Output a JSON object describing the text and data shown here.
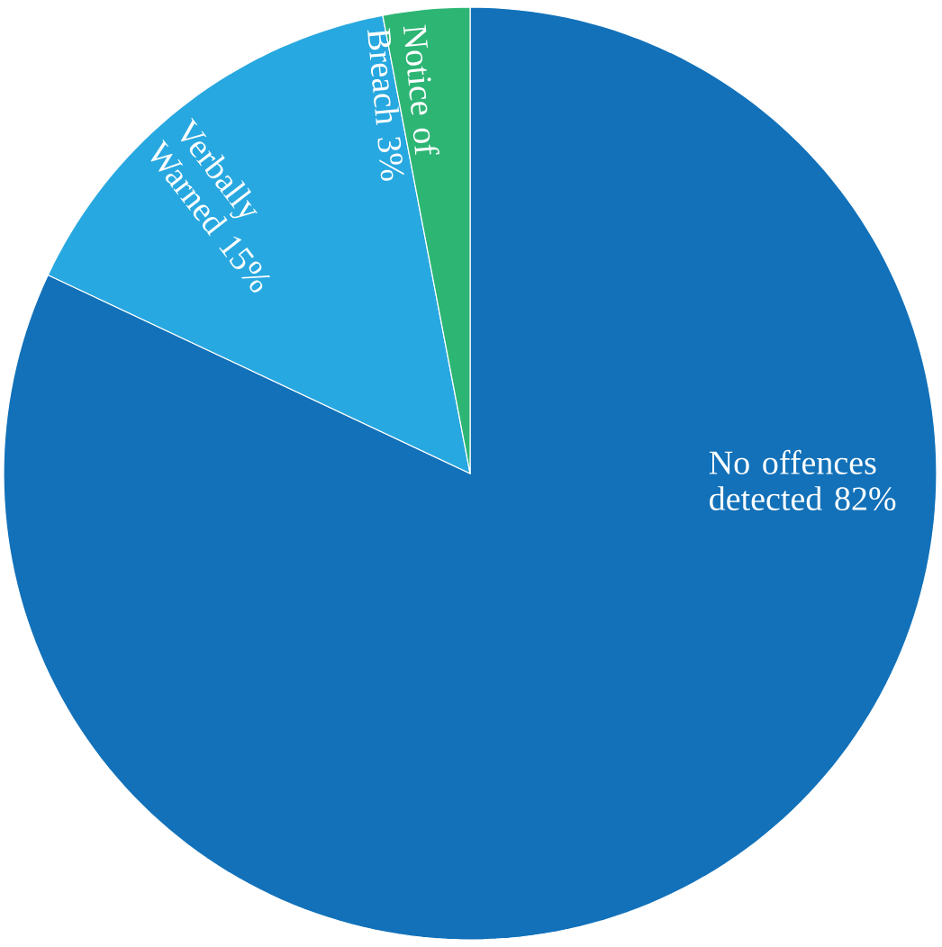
{
  "chart_data": {
    "type": "pie",
    "categories": [
      "No offences detected",
      "Verbally Warned",
      "Notice of Breach"
    ],
    "values": [
      82,
      15,
      3
    ],
    "value_labels": [
      "82%",
      "15%",
      "3%"
    ],
    "colors": [
      "#1271b9",
      "#28a8e0",
      "#2db574"
    ]
  }
}
